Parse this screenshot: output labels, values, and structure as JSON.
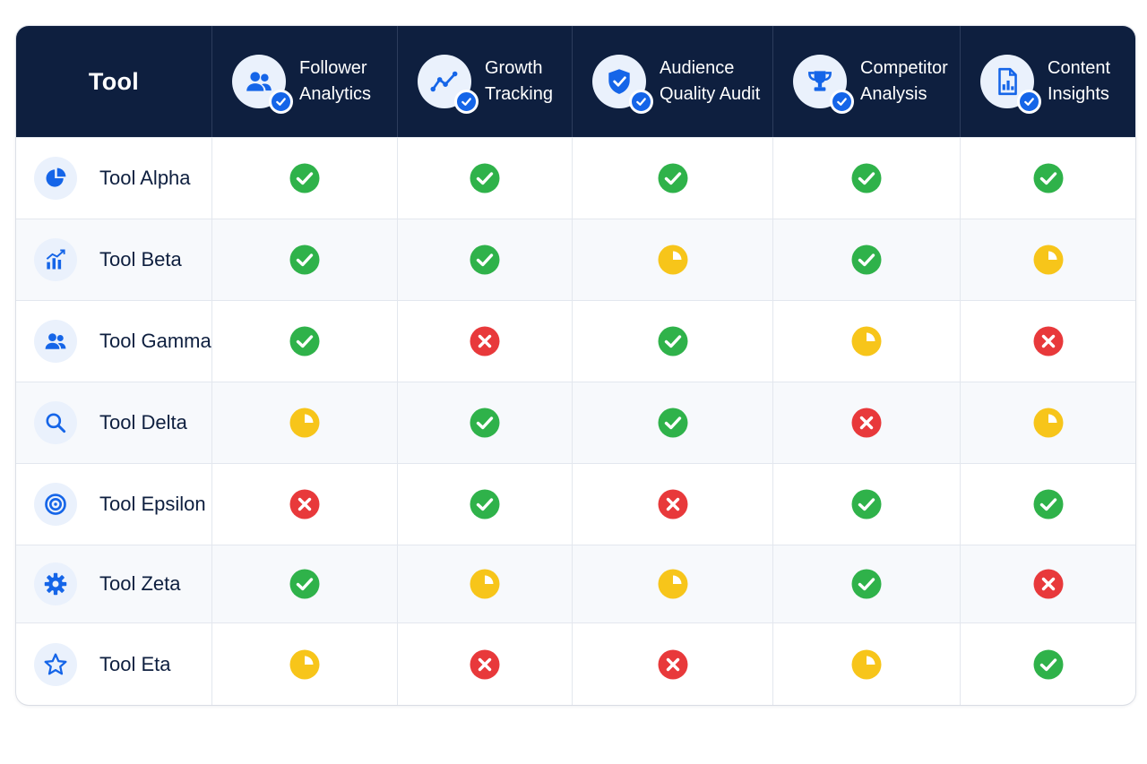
{
  "header": {
    "tool_label": "Tool",
    "features": [
      {
        "line1": "Follower",
        "line2": "Analytics",
        "icon": "users-icon"
      },
      {
        "line1": "Growth",
        "line2": "Tracking",
        "icon": "trend-line-icon"
      },
      {
        "line1": "Audience",
        "line2": "Quality Audit",
        "icon": "shield-check-icon"
      },
      {
        "line1": "Competitor",
        "line2": "Analysis",
        "icon": "trophy-icon"
      },
      {
        "line1": "Content",
        "line2": "Insights",
        "icon": "report-document-icon"
      }
    ]
  },
  "rows": [
    {
      "name": "Tool Alpha",
      "icon": "pie-chart-icon",
      "statuses": [
        "yes",
        "yes",
        "yes",
        "yes",
        "yes"
      ]
    },
    {
      "name": "Tool Beta",
      "icon": "bar-chart-icon",
      "statuses": [
        "yes",
        "yes",
        "partial",
        "yes",
        "partial"
      ]
    },
    {
      "name": "Tool Gamma",
      "icon": "users-icon",
      "statuses": [
        "yes",
        "no",
        "yes",
        "partial",
        "no"
      ]
    },
    {
      "name": "Tool Delta",
      "icon": "search-icon",
      "statuses": [
        "partial",
        "yes",
        "yes",
        "no",
        "partial"
      ]
    },
    {
      "name": "Tool Epsilon",
      "icon": "target-icon",
      "statuses": [
        "no",
        "yes",
        "no",
        "yes",
        "yes"
      ]
    },
    {
      "name": "Tool Zeta",
      "icon": "gear-icon",
      "statuses": [
        "yes",
        "partial",
        "partial",
        "yes",
        "no"
      ]
    },
    {
      "name": "Tool Eta",
      "icon": "star-icon",
      "statuses": [
        "partial",
        "no",
        "no",
        "partial",
        "yes"
      ]
    }
  ],
  "colors": {
    "header_bg": "#0e1f3f",
    "accent_blue": "#1565e8",
    "yes": "#2fb24a",
    "partial": "#f7c51a",
    "no": "#e8393b"
  }
}
